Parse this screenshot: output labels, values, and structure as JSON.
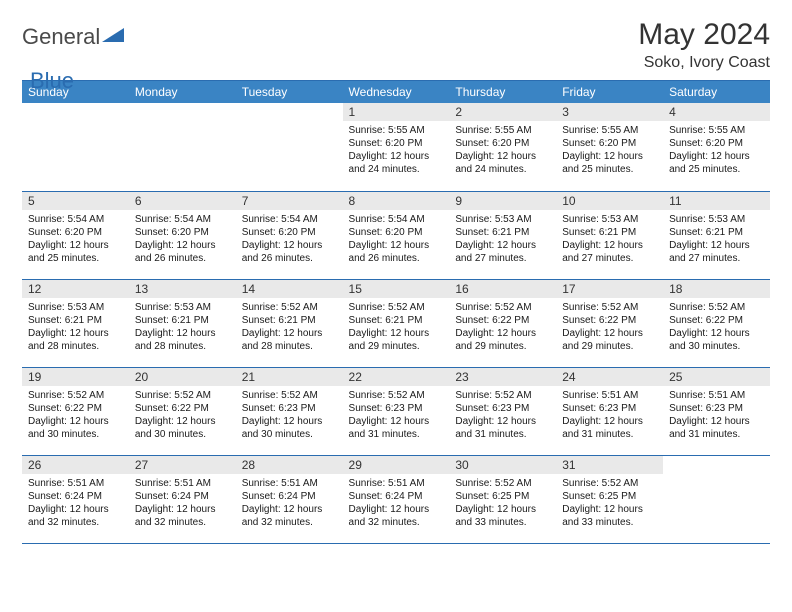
{
  "logo": {
    "text_gray": "General",
    "text_blue": "Blue",
    "triangle_color": "#2a6cb0"
  },
  "title": "May 2024",
  "location": "Soko, Ivory Coast",
  "colors": {
    "header_bg": "#3a84c4",
    "header_text": "#ffffff",
    "rule": "#2a6cb0",
    "daynum_bg": "#e9e9e9",
    "text": "#1a1a1a"
  },
  "typography": {
    "title_size": 30,
    "location_size": 16,
    "weekday_size": 12,
    "body_size": 10
  },
  "weekdays": [
    "Sunday",
    "Monday",
    "Tuesday",
    "Wednesday",
    "Thursday",
    "Friday",
    "Saturday"
  ],
  "first_weekday_index": 3,
  "days": [
    {
      "n": 1,
      "sunrise": "5:55 AM",
      "sunset": "6:20 PM",
      "daylight": "12 hours and 24 minutes."
    },
    {
      "n": 2,
      "sunrise": "5:55 AM",
      "sunset": "6:20 PM",
      "daylight": "12 hours and 24 minutes."
    },
    {
      "n": 3,
      "sunrise": "5:55 AM",
      "sunset": "6:20 PM",
      "daylight": "12 hours and 25 minutes."
    },
    {
      "n": 4,
      "sunrise": "5:55 AM",
      "sunset": "6:20 PM",
      "daylight": "12 hours and 25 minutes."
    },
    {
      "n": 5,
      "sunrise": "5:54 AM",
      "sunset": "6:20 PM",
      "daylight": "12 hours and 25 minutes."
    },
    {
      "n": 6,
      "sunrise": "5:54 AM",
      "sunset": "6:20 PM",
      "daylight": "12 hours and 26 minutes."
    },
    {
      "n": 7,
      "sunrise": "5:54 AM",
      "sunset": "6:20 PM",
      "daylight": "12 hours and 26 minutes."
    },
    {
      "n": 8,
      "sunrise": "5:54 AM",
      "sunset": "6:20 PM",
      "daylight": "12 hours and 26 minutes."
    },
    {
      "n": 9,
      "sunrise": "5:53 AM",
      "sunset": "6:21 PM",
      "daylight": "12 hours and 27 minutes."
    },
    {
      "n": 10,
      "sunrise": "5:53 AM",
      "sunset": "6:21 PM",
      "daylight": "12 hours and 27 minutes."
    },
    {
      "n": 11,
      "sunrise": "5:53 AM",
      "sunset": "6:21 PM",
      "daylight": "12 hours and 27 minutes."
    },
    {
      "n": 12,
      "sunrise": "5:53 AM",
      "sunset": "6:21 PM",
      "daylight": "12 hours and 28 minutes."
    },
    {
      "n": 13,
      "sunrise": "5:53 AM",
      "sunset": "6:21 PM",
      "daylight": "12 hours and 28 minutes."
    },
    {
      "n": 14,
      "sunrise": "5:52 AM",
      "sunset": "6:21 PM",
      "daylight": "12 hours and 28 minutes."
    },
    {
      "n": 15,
      "sunrise": "5:52 AM",
      "sunset": "6:21 PM",
      "daylight": "12 hours and 29 minutes."
    },
    {
      "n": 16,
      "sunrise": "5:52 AM",
      "sunset": "6:22 PM",
      "daylight": "12 hours and 29 minutes."
    },
    {
      "n": 17,
      "sunrise": "5:52 AM",
      "sunset": "6:22 PM",
      "daylight": "12 hours and 29 minutes."
    },
    {
      "n": 18,
      "sunrise": "5:52 AM",
      "sunset": "6:22 PM",
      "daylight": "12 hours and 30 minutes."
    },
    {
      "n": 19,
      "sunrise": "5:52 AM",
      "sunset": "6:22 PM",
      "daylight": "12 hours and 30 minutes."
    },
    {
      "n": 20,
      "sunrise": "5:52 AM",
      "sunset": "6:22 PM",
      "daylight": "12 hours and 30 minutes."
    },
    {
      "n": 21,
      "sunrise": "5:52 AM",
      "sunset": "6:23 PM",
      "daylight": "12 hours and 30 minutes."
    },
    {
      "n": 22,
      "sunrise": "5:52 AM",
      "sunset": "6:23 PM",
      "daylight": "12 hours and 31 minutes."
    },
    {
      "n": 23,
      "sunrise": "5:52 AM",
      "sunset": "6:23 PM",
      "daylight": "12 hours and 31 minutes."
    },
    {
      "n": 24,
      "sunrise": "5:51 AM",
      "sunset": "6:23 PM",
      "daylight": "12 hours and 31 minutes."
    },
    {
      "n": 25,
      "sunrise": "5:51 AM",
      "sunset": "6:23 PM",
      "daylight": "12 hours and 31 minutes."
    },
    {
      "n": 26,
      "sunrise": "5:51 AM",
      "sunset": "6:24 PM",
      "daylight": "12 hours and 32 minutes."
    },
    {
      "n": 27,
      "sunrise": "5:51 AM",
      "sunset": "6:24 PM",
      "daylight": "12 hours and 32 minutes."
    },
    {
      "n": 28,
      "sunrise": "5:51 AM",
      "sunset": "6:24 PM",
      "daylight": "12 hours and 32 minutes."
    },
    {
      "n": 29,
      "sunrise": "5:51 AM",
      "sunset": "6:24 PM",
      "daylight": "12 hours and 32 minutes."
    },
    {
      "n": 30,
      "sunrise": "5:52 AM",
      "sunset": "6:25 PM",
      "daylight": "12 hours and 33 minutes."
    },
    {
      "n": 31,
      "sunrise": "5:52 AM",
      "sunset": "6:25 PM",
      "daylight": "12 hours and 33 minutes."
    }
  ],
  "labels": {
    "sunrise": "Sunrise:",
    "sunset": "Sunset:",
    "daylight": "Daylight:"
  }
}
